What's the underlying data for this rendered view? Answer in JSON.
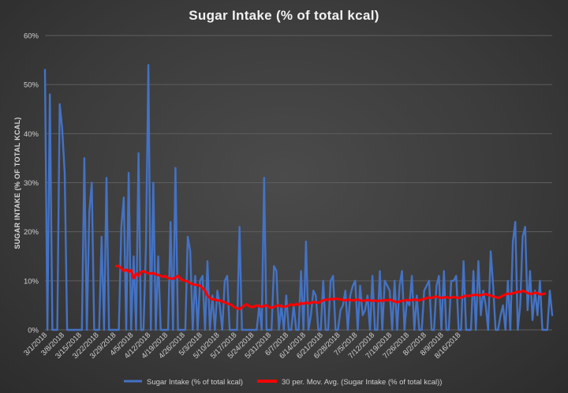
{
  "chart_data": {
    "type": "line",
    "title": "Sugar Intake (% of total kcal)",
    "xlabel": "",
    "ylabel": "SUGAR INTAKE (% OF TOTAL KCAL)",
    "ylim": [
      0,
      60
    ],
    "yticks": [
      "0%",
      "10%",
      "20%",
      "30%",
      "40%",
      "50%",
      "60%"
    ],
    "xticks": [
      "3/1/2018",
      "3/8/2018",
      "3/15/2018",
      "3/22/2018",
      "3/29/2018",
      "4/5/2018",
      "4/12/2018",
      "4/19/2018",
      "4/26/2018",
      "5/3/2018",
      "5/10/2018",
      "5/17/2018",
      "5/24/2018",
      "5/31/2018",
      "6/7/2018",
      "6/14/2018",
      "6/21/2018",
      "6/28/2018",
      "7/5/2018",
      "7/12/2018",
      "7/19/2018",
      "7/26/2018",
      "8/2/2018",
      "8/9/2018",
      "8/16/2018"
    ],
    "grid": true,
    "legend_position": "bottom",
    "series": [
      {
        "name": "Sugar Intake (% of total kcal)",
        "color": "#4472C4",
        "values": [
          53,
          0,
          48,
          0,
          0,
          0,
          46,
          41,
          32,
          0,
          0,
          0,
          0,
          0,
          0,
          0,
          35,
          0,
          24,
          30,
          0,
          0,
          0,
          19,
          0,
          31,
          0,
          0,
          0,
          0,
          0,
          21,
          27,
          0,
          32,
          0,
          15,
          0,
          36,
          0,
          0,
          17,
          54,
          0,
          30,
          0,
          15,
          0,
          0,
          0,
          0,
          22,
          0,
          33,
          0,
          0,
          0,
          0,
          19,
          16,
          0,
          11,
          0,
          10,
          11,
          0,
          14,
          0,
          7,
          0,
          8,
          5,
          0,
          10,
          11,
          0,
          0,
          0,
          0,
          21,
          0,
          0,
          0,
          0,
          0,
          0,
          0,
          5,
          0,
          31,
          0,
          0,
          0,
          13,
          12,
          0,
          5,
          0,
          7,
          0,
          0,
          5,
          0,
          0,
          12,
          0,
          18,
          0,
          3,
          8,
          7,
          0,
          0,
          10,
          0,
          0,
          10,
          11,
          0,
          0,
          4,
          5,
          8,
          0,
          7,
          9,
          10,
          0,
          9,
          3,
          4,
          7,
          0,
          11,
          0,
          0,
          12,
          0,
          10,
          9,
          8,
          0,
          10,
          0,
          9,
          12,
          0,
          6,
          5,
          11,
          0,
          7,
          0,
          0,
          8,
          9,
          10,
          0,
          0,
          9,
          11,
          0,
          12,
          0,
          0,
          10,
          10,
          11,
          0,
          0,
          14,
          0,
          0,
          0,
          12,
          0,
          14,
          3,
          8,
          5,
          0,
          16,
          9,
          0,
          0,
          3,
          5,
          0,
          10,
          0,
          18,
          22,
          0,
          5,
          19,
          21,
          4,
          12,
          2,
          8,
          3,
          10,
          0,
          0,
          0,
          8,
          3
        ],
        "approximate": true
      },
      {
        "name": "30 per. Mov. Avg. (Sugar Intake (% of total kcal))",
        "color": "#FF0000",
        "start_index": 29,
        "values": [
          13,
          13,
          12.5,
          12,
          12.3,
          11.8,
          12.2,
          10.5,
          11.5,
          11,
          11.8,
          12,
          11.7,
          11.5,
          11.5,
          11.6,
          11.3,
          11.2,
          11,
          10.8,
          11,
          10.5,
          10.5,
          10.4,
          10.7,
          11,
          10.4,
          10.1,
          10,
          9.8,
          9.5,
          9.3,
          9.2,
          9.1,
          9,
          8.5,
          8,
          7,
          6.5,
          6.2,
          6.2,
          6,
          6,
          5.8,
          5.6,
          5.4,
          5.2,
          5,
          4.6,
          4.4,
          4.2,
          4.6,
          5,
          5.2,
          4.8,
          4.6,
          4.8,
          5,
          4.8,
          4.7,
          4.9,
          5,
          4.6,
          4.5,
          4.7,
          4.9,
          5,
          4.8,
          4.7,
          4.8,
          5,
          5.2,
          5,
          5.3,
          5.1,
          5.5,
          5.3,
          5.6,
          5.4,
          5.5,
          5.7,
          5.6,
          5.5,
          5.8,
          6,
          6.2,
          6.1,
          6.3,
          6.2,
          6.4,
          6.3,
          6.2,
          6.1,
          6,
          6.2,
          6.1,
          6,
          6.1,
          6.2,
          6,
          5.9,
          6,
          6.1,
          6,
          5.9,
          6,
          5.8,
          6,
          5.9,
          6.1,
          6,
          6.2,
          6,
          5.8,
          5.6,
          5.8,
          5.9,
          6,
          6.1,
          6,
          6.1,
          6.2,
          6.1,
          6,
          6.2,
          6.3,
          6.5,
          6.6,
          6.5,
          6.7,
          6.8,
          6.6,
          6.5,
          6.6,
          6.7,
          6.5,
          6.6,
          6.7,
          6.6,
          6.5,
          6.6,
          6.8,
          7,
          6.9,
          7,
          7.1,
          7.2,
          7,
          7.1,
          7.2,
          7.3,
          7.1,
          7,
          6.8,
          6.7,
          6.5,
          6.7,
          7,
          7.2,
          7.4,
          7.3,
          7.5,
          7.6,
          7.8,
          7.7,
          8,
          7.8,
          7.5,
          7.3,
          7.4,
          7.6,
          7.5,
          7.2,
          7.3,
          7.4
        ],
        "approximate": true
      }
    ]
  }
}
